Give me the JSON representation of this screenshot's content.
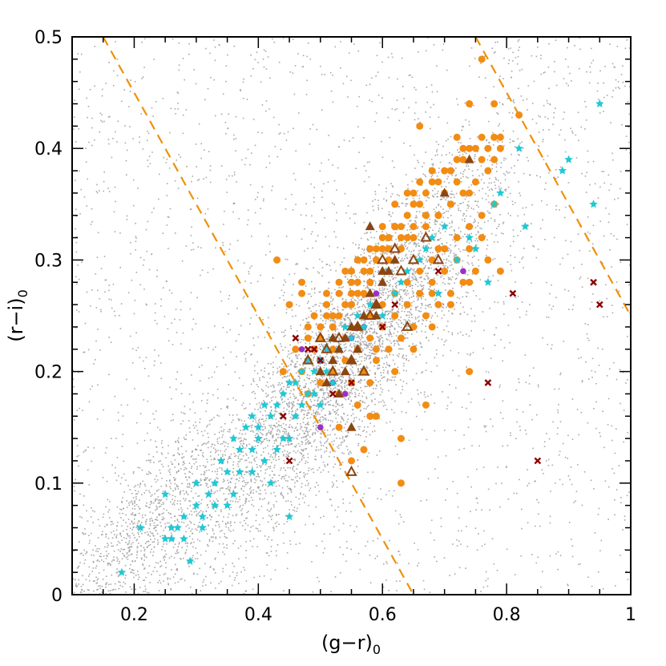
{
  "chart_data": {
    "type": "scatter",
    "title": "",
    "xlabel": "(g−r)₀",
    "ylabel": "(r−i)₀",
    "xlabel_parts": {
      "main": "(g−r)",
      "sub": "0"
    },
    "ylabel_parts": {
      "main": "(r−i)",
      "sub": "0"
    },
    "xlim": [
      0.1,
      1.0
    ],
    "ylim": [
      0.0,
      0.5
    ],
    "x_ticks": [
      0.2,
      0.4,
      0.6,
      0.8,
      1.0
    ],
    "x_tick_labels": [
      "0.2",
      "0.4",
      "0.6",
      "0.8",
      "1"
    ],
    "y_ticks": [
      0.0,
      0.1,
      0.2,
      0.3,
      0.4,
      0.5
    ],
    "y_tick_labels": [
      "0",
      "0.1",
      "0.2",
      "0.3",
      "0.4",
      "0.5"
    ],
    "grid": false,
    "reference_lines": [
      {
        "name": "left-dashed-boundary",
        "color": "#f0900a",
        "style": "dashed",
        "points": [
          [
            0.15,
            0.5
          ],
          [
            0.65,
            0.0
          ]
        ]
      },
      {
        "name": "right-dashed-boundary",
        "color": "#f0900a",
        "style": "dashed",
        "points": [
          [
            0.75,
            0.5
          ],
          [
            1.0,
            0.25
          ]
        ]
      }
    ],
    "series": [
      {
        "name": "field-stars",
        "marker": "dot",
        "color": "#9a9a9a",
        "note": "dense background cloud of faint grey points",
        "generator": {
          "count": 7000,
          "core_center": [
            0.55,
            0.22
          ],
          "core_spread": [
            0.12,
            0.07
          ],
          "slope": 0.5
        }
      },
      {
        "name": "orange-circles",
        "marker": "circle",
        "color": "#f28c13",
        "x": [
          0.43,
          0.45,
          0.47,
          0.48,
          0.49,
          0.5,
          0.51,
          0.52,
          0.53,
          0.54,
          0.55,
          0.56,
          0.57,
          0.58,
          0.59,
          0.6,
          0.61,
          0.62,
          0.63,
          0.64,
          0.65,
          0.66,
          0.67,
          0.68,
          0.69,
          0.7,
          0.71,
          0.72,
          0.73,
          0.74,
          0.75,
          0.76,
          0.77,
          0.78,
          0.79,
          0.5,
          0.52,
          0.54,
          0.56,
          0.58,
          0.6,
          0.62,
          0.64,
          0.66,
          0.68,
          0.7,
          0.72,
          0.74,
          0.76,
          0.78,
          0.49,
          0.51,
          0.53,
          0.55,
          0.57,
          0.59,
          0.61,
          0.63,
          0.65,
          0.67,
          0.69,
          0.71,
          0.73,
          0.75,
          0.77,
          0.52,
          0.54,
          0.56,
          0.58,
          0.6,
          0.62,
          0.64,
          0.66,
          0.68,
          0.7,
          0.72,
          0.74,
          0.76,
          0.55,
          0.57,
          0.59,
          0.61,
          0.63,
          0.65,
          0.67,
          0.69,
          0.71,
          0.73,
          0.75,
          0.72,
          0.74,
          0.76,
          0.78,
          0.79,
          0.73,
          0.7,
          0.67,
          0.64,
          0.61,
          0.58,
          0.55,
          0.52,
          0.49,
          0.47,
          0.46,
          0.48,
          0.5,
          0.53,
          0.56,
          0.59,
          0.62,
          0.65,
          0.68,
          0.71,
          0.74,
          0.77,
          0.6,
          0.62,
          0.64,
          0.66,
          0.68,
          0.63,
          0.65,
          0.67,
          0.69,
          0.71,
          0.54,
          0.56,
          0.58,
          0.6,
          0.62,
          0.51,
          0.53,
          0.55,
          0.57,
          0.59,
          0.61,
          0.48,
          0.5,
          0.52,
          0.54,
          0.56,
          0.44,
          0.48,
          0.53,
          0.58,
          0.63,
          0.67,
          0.82,
          0.78,
          0.76,
          0.74,
          0.63,
          0.57,
          0.55,
          0.47,
          0.58,
          0.74,
          0.79,
          0.69,
          0.68,
          0.66,
          0.72,
          0.71,
          0.65,
          0.62,
          0.59
        ],
        "y": [
          0.3,
          0.26,
          0.27,
          0.24,
          0.22,
          0.23,
          0.25,
          0.24,
          0.25,
          0.26,
          0.27,
          0.28,
          0.27,
          0.29,
          0.3,
          0.31,
          0.32,
          0.33,
          0.33,
          0.34,
          0.35,
          0.35,
          0.36,
          0.37,
          0.37,
          0.38,
          0.38,
          0.39,
          0.39,
          0.4,
          0.4,
          0.41,
          0.4,
          0.41,
          0.41,
          0.21,
          0.22,
          0.23,
          0.24,
          0.25,
          0.26,
          0.27,
          0.28,
          0.29,
          0.3,
          0.31,
          0.32,
          0.33,
          0.34,
          0.35,
          0.25,
          0.26,
          0.27,
          0.28,
          0.29,
          0.3,
          0.31,
          0.32,
          0.33,
          0.34,
          0.34,
          0.35,
          0.36,
          0.37,
          0.38,
          0.2,
          0.21,
          0.22,
          0.23,
          0.24,
          0.25,
          0.26,
          0.27,
          0.28,
          0.29,
          0.3,
          0.31,
          0.32,
          0.19,
          0.2,
          0.21,
          0.22,
          0.23,
          0.24,
          0.25,
          0.26,
          0.27,
          0.28,
          0.29,
          0.37,
          0.36,
          0.39,
          0.39,
          0.4,
          0.4,
          0.36,
          0.34,
          0.32,
          0.3,
          0.28,
          0.26,
          0.24,
          0.22,
          0.2,
          0.22,
          0.21,
          0.19,
          0.18,
          0.17,
          0.16,
          0.2,
          0.22,
          0.24,
          0.26,
          0.28,
          0.3,
          0.33,
          0.35,
          0.36,
          0.37,
          0.38,
          0.31,
          0.32,
          0.33,
          0.34,
          0.35,
          0.29,
          0.3,
          0.31,
          0.32,
          0.33,
          0.27,
          0.28,
          0.29,
          0.3,
          0.31,
          0.32,
          0.23,
          0.24,
          0.25,
          0.26,
          0.27,
          0.2,
          0.18,
          0.15,
          0.16,
          0.14,
          0.17,
          0.43,
          0.44,
          0.48,
          0.44,
          0.1,
          0.13,
          0.12,
          0.28,
          0.19,
          0.2,
          0.29,
          0.31,
          0.27,
          0.42,
          0.41,
          0.38,
          0.36,
          0.33,
          0.22
        ]
      },
      {
        "name": "cyan-stars",
        "marker": "star",
        "color": "#22c8d4",
        "x": [
          0.18,
          0.21,
          0.25,
          0.26,
          0.27,
          0.28,
          0.29,
          0.3,
          0.31,
          0.32,
          0.33,
          0.34,
          0.35,
          0.36,
          0.37,
          0.38,
          0.39,
          0.4,
          0.41,
          0.42,
          0.43,
          0.44,
          0.45,
          0.46,
          0.47,
          0.48,
          0.49,
          0.5,
          0.51,
          0.52,
          0.53,
          0.54,
          0.55,
          0.56,
          0.57,
          0.58,
          0.6,
          0.62,
          0.64,
          0.66,
          0.68,
          0.7,
          0.74,
          0.78,
          0.83,
          0.89,
          0.9,
          0.95,
          0.94,
          0.25,
          0.3,
          0.33,
          0.36,
          0.39,
          0.42,
          0.45,
          0.44,
          0.48,
          0.5,
          0.52,
          0.28,
          0.34,
          0.4,
          0.46,
          0.31,
          0.37,
          0.43,
          0.49,
          0.55,
          0.69,
          0.79,
          0.82,
          0.26,
          0.35,
          0.45,
          0.51,
          0.57,
          0.63,
          0.67,
          0.72,
          0.77,
          0.39,
          0.41,
          0.47,
          0.53,
          0.59,
          0.61,
          0.75
        ],
        "y": [
          0.02,
          0.06,
          0.05,
          0.06,
          0.06,
          0.05,
          0.03,
          0.08,
          0.07,
          0.09,
          0.1,
          0.12,
          0.11,
          0.14,
          0.13,
          0.15,
          0.16,
          0.14,
          0.17,
          0.16,
          0.17,
          0.18,
          0.19,
          0.19,
          0.2,
          0.21,
          0.2,
          0.21,
          0.22,
          0.23,
          0.22,
          0.24,
          0.23,
          0.25,
          0.24,
          0.26,
          0.25,
          0.27,
          0.29,
          0.3,
          0.32,
          0.33,
          0.32,
          0.35,
          0.33,
          0.38,
          0.39,
          0.44,
          0.35,
          0.09,
          0.1,
          0.08,
          0.09,
          0.11,
          0.1,
          0.07,
          0.14,
          0.18,
          0.17,
          0.19,
          0.07,
          0.12,
          0.15,
          0.16,
          0.06,
          0.11,
          0.13,
          0.18,
          0.21,
          0.27,
          0.36,
          0.4,
          0.05,
          0.08,
          0.14,
          0.2,
          0.24,
          0.28,
          0.31,
          0.3,
          0.28,
          0.13,
          0.12,
          0.17,
          0.22,
          0.26,
          0.29,
          0.31
        ]
      },
      {
        "name": "brown-filled-triangles",
        "marker": "triangle-filled",
        "color": "#8b4513",
        "x": [
          0.5,
          0.52,
          0.53,
          0.54,
          0.55,
          0.56,
          0.57,
          0.58,
          0.59,
          0.6,
          0.61,
          0.62,
          0.55,
          0.53,
          0.51,
          0.58,
          0.6,
          0.7,
          0.74,
          0.59,
          0.55,
          0.54,
          0.52,
          0.56
        ],
        "y": [
          0.2,
          0.21,
          0.22,
          0.23,
          0.24,
          0.22,
          0.25,
          0.27,
          0.26,
          0.28,
          0.29,
          0.3,
          0.15,
          0.18,
          0.19,
          0.33,
          0.29,
          0.36,
          0.39,
          0.25,
          0.21,
          0.2,
          0.23,
          0.24
        ]
      },
      {
        "name": "brown-open-triangles",
        "marker": "triangle-open",
        "color": "#8b4513",
        "x": [
          0.48,
          0.51,
          0.53,
          0.55,
          0.56,
          0.58,
          0.59,
          0.6,
          0.62,
          0.63,
          0.65,
          0.67,
          0.69,
          0.55,
          0.57,
          0.64,
          0.52,
          0.5
        ],
        "y": [
          0.21,
          0.22,
          0.23,
          0.21,
          0.24,
          0.25,
          0.26,
          0.3,
          0.31,
          0.29,
          0.3,
          0.32,
          0.3,
          0.11,
          0.2,
          0.24,
          0.2,
          0.23
        ]
      },
      {
        "name": "purple-circles",
        "marker": "circle-small",
        "color": "#9b30c8",
        "x": [
          0.5,
          0.52,
          0.54,
          0.57,
          0.59,
          0.73,
          0.55,
          0.5,
          0.47
        ],
        "y": [
          0.15,
          0.19,
          0.18,
          0.24,
          0.27,
          0.29,
          0.23,
          0.21,
          0.22
        ]
      },
      {
        "name": "red-crosses",
        "marker": "x",
        "color": "#8b0000",
        "x": [
          0.44,
          0.45,
          0.46,
          0.48,
          0.49,
          0.5,
          0.52,
          0.55,
          0.69,
          0.77,
          0.81,
          0.85,
          0.94,
          0.95,
          0.6,
          0.62
        ],
        "y": [
          0.16,
          0.12,
          0.23,
          0.22,
          0.22,
          0.21,
          0.18,
          0.19,
          0.29,
          0.19,
          0.27,
          0.12,
          0.28,
          0.26,
          0.24,
          0.26
        ]
      }
    ]
  }
}
